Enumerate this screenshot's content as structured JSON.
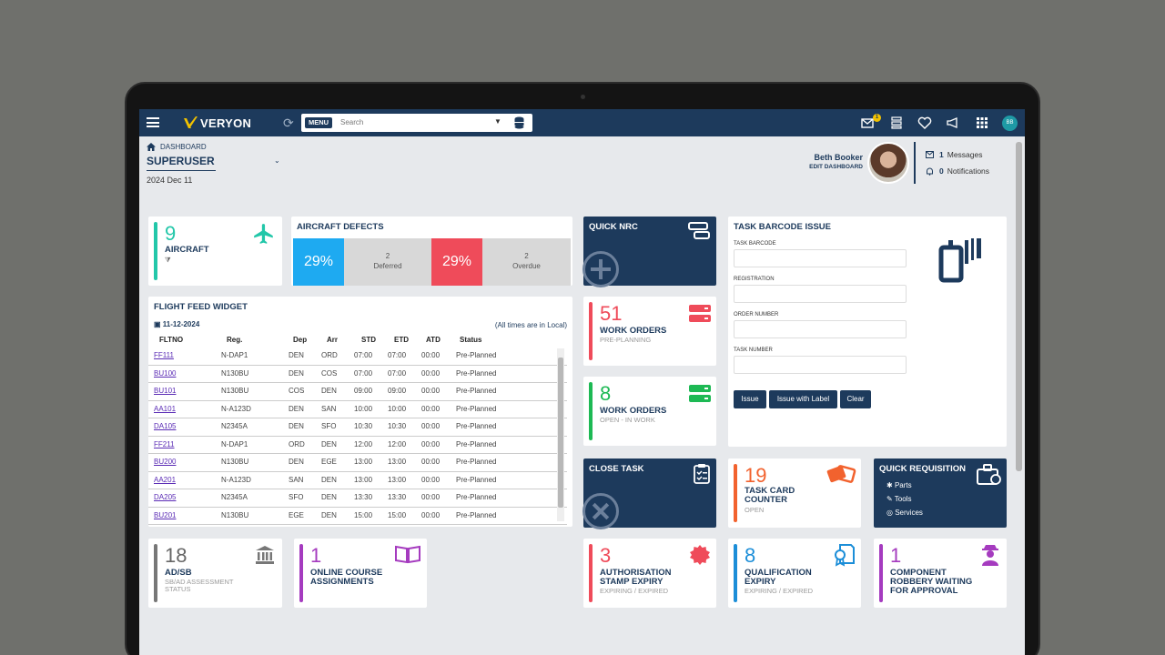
{
  "topbar": {
    "brand": "VERYON",
    "menu_label": "MENU",
    "search_placeholder": "Search",
    "message_badge": "1",
    "user_initials": "BB"
  },
  "header": {
    "breadcrumb": "DASHBOARD",
    "dashboard_name": "SUPERUSER",
    "date": "2024 Dec 11",
    "user_name": "Beth Booker",
    "edit_dashboard": "EDIT DASHBOARD",
    "messages_count": "1",
    "messages_label": "Messages",
    "notifications_count": "0",
    "notifications_label": "Notifications"
  },
  "aircraft_card": {
    "count": "9",
    "label": "AIRCRAFT",
    "filter_glyph": "⧩"
  },
  "defects": {
    "title": "AIRCRAFT DEFECTS",
    "deferred_pct": "29%",
    "deferred_count": "2",
    "deferred_label": "Deferred",
    "overdue_pct": "29%",
    "overdue_count": "2",
    "overdue_label": "Overdue"
  },
  "flight_feed": {
    "title": "FLIGHT FEED WIDGET",
    "date": "11-12-2024",
    "tz_note": "(All times are in Local)",
    "columns": [
      "FLTNO",
      "Reg.",
      "Dep",
      "Arr",
      "STD",
      "ETD",
      "ATD",
      "Status"
    ],
    "rows": [
      [
        "FF111",
        "N-DAP1",
        "DEN",
        "ORD",
        "07:00",
        "07:00",
        "00:00",
        "Pre-Planned"
      ],
      [
        "BU100",
        "N130BU",
        "DEN",
        "COS",
        "07:00",
        "07:00",
        "00:00",
        "Pre-Planned"
      ],
      [
        "BU101",
        "N130BU",
        "COS",
        "DEN",
        "09:00",
        "09:00",
        "00:00",
        "Pre-Planned"
      ],
      [
        "AA101",
        "N-A123D",
        "DEN",
        "SAN",
        "10:00",
        "10:00",
        "00:00",
        "Pre-Planned"
      ],
      [
        "DA105",
        "N2345A",
        "DEN",
        "SFO",
        "10:30",
        "10:30",
        "00:00",
        "Pre-Planned"
      ],
      [
        "FF211",
        "N-DAP1",
        "ORD",
        "DEN",
        "12:00",
        "12:00",
        "00:00",
        "Pre-Planned"
      ],
      [
        "BU200",
        "N130BU",
        "DEN",
        "EGE",
        "13:00",
        "13:00",
        "00:00",
        "Pre-Planned"
      ],
      [
        "AA201",
        "N-A123D",
        "SAN",
        "DEN",
        "13:00",
        "13:00",
        "00:00",
        "Pre-Planned"
      ],
      [
        "DA205",
        "N2345A",
        "SFO",
        "DEN",
        "13:30",
        "13:30",
        "00:00",
        "Pre-Planned"
      ],
      [
        "BU201",
        "N130BU",
        "EGE",
        "DEN",
        "15:00",
        "15:00",
        "00:00",
        "Pre-Planned"
      ]
    ]
  },
  "quick_nrc": {
    "title": "QUICK NRC"
  },
  "work_orders_pre": {
    "count": "51",
    "label": "WORK ORDERS",
    "sub": "PRE-PLANNING"
  },
  "work_orders_open": {
    "count": "8",
    "label": "WORK ORDERS",
    "sub": "OPEN - IN WORK"
  },
  "close_task": {
    "title": "CLOSE TASK"
  },
  "barcode": {
    "title": "TASK BARCODE ISSUE",
    "field_task_barcode": "TASK BARCODE",
    "field_registration": "REGISTRATION",
    "field_order_number": "ORDER NUMBER",
    "field_task_number": "TASK NUMBER",
    "btn_issue": "Issue",
    "btn_issue_label": "Issue with Label",
    "btn_clear": "Clear"
  },
  "task_card": {
    "count": "19",
    "label_line1": "TASK CARD",
    "label_line2": "COUNTER",
    "sub": "OPEN"
  },
  "quick_requisition": {
    "title": "QUICK REQUISITION",
    "items": [
      "Parts",
      "Tools",
      "Services"
    ]
  },
  "adsb": {
    "count": "18",
    "label": "AD/SB",
    "sub_line1": "SB/AD ASSESSMENT",
    "sub_line2": "STATUS"
  },
  "online_course": {
    "count": "1",
    "label_line1": "ONLINE COURSE",
    "label_line2": "ASSIGNMENTS"
  },
  "auth_stamp": {
    "count": "3",
    "label_line1": "AUTHORISATION",
    "label_line2": "STAMP EXPIRY",
    "sub": "EXPIRING / EXPIRED"
  },
  "qualification": {
    "count": "8",
    "label_line1": "QUALIFICATION",
    "label_line2": "EXPIRY",
    "sub": "EXPIRING / EXPIRED"
  },
  "component_robbery": {
    "count": "1",
    "label_line1": "COMPONENT",
    "label_line2": "ROBBERY WAITING",
    "label_line3": "FOR APPROVAL"
  },
  "colors": {
    "navy": "#1d3a5c",
    "teal": "#22c7a9",
    "blue_pct": "#1eaaf1",
    "red": "#ef4b5a",
    "green": "#1db954",
    "orange": "#f2622e",
    "grey_bar": "#777777",
    "purple": "#a53bbf",
    "blue": "#1c8ed8"
  }
}
